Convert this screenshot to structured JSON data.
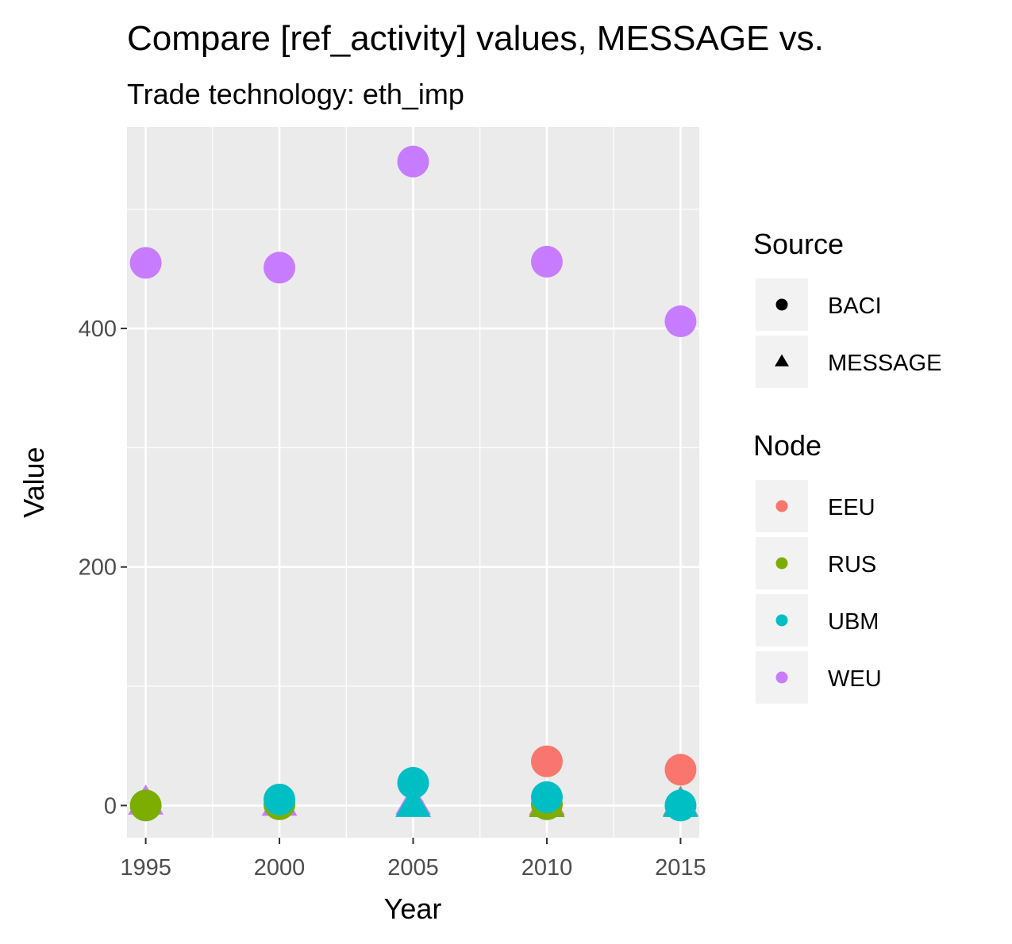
{
  "chart_data": {
    "type": "scatter",
    "title": "Compare [ref_activity] values, MESSAGE vs.",
    "subtitle": "Trade technology: eth_imp",
    "xlabel": "Year",
    "ylabel": "Value",
    "xlim": [
      1994.3,
      2015.7
    ],
    "ylim": [
      -27,
      569
    ],
    "x_ticks": [
      1995,
      2000,
      2005,
      2010,
      2015
    ],
    "y_ticks": [
      0,
      200,
      400
    ],
    "grid": true,
    "legend_position": "right",
    "legends": [
      {
        "title": "Source",
        "entries": [
          {
            "label": "BACI",
            "shape": "circle"
          },
          {
            "label": "MESSAGE",
            "shape": "triangle"
          }
        ]
      },
      {
        "title": "Node",
        "entries": [
          {
            "label": "EEU",
            "color": "#F8766D"
          },
          {
            "label": "RUS",
            "color": "#7CAE00"
          },
          {
            "label": "UBM",
            "color": "#00BFC4"
          },
          {
            "label": "WEU",
            "color": "#C77CFF"
          }
        ]
      }
    ],
    "series": [
      {
        "name": "WEU",
        "source": "BACI",
        "color": "#C77CFF",
        "shape": "circle",
        "x": [
          1995,
          2000,
          2005,
          2010,
          2015
        ],
        "y": [
          455,
          451,
          540,
          456,
          406
        ]
      },
      {
        "name": "WEU",
        "source": "MESSAGE",
        "color": "#C77CFF",
        "shape": "triangle",
        "x": [
          1995,
          2000,
          2005,
          2010,
          2015
        ],
        "y": [
          2,
          1,
          2,
          2,
          1
        ]
      },
      {
        "name": "EEU",
        "source": "MESSAGE",
        "color": "#F8766D",
        "shape": "triangle",
        "x": [
          2010,
          2015
        ],
        "y": [
          1,
          1
        ]
      },
      {
        "name": "UBM",
        "source": "MESSAGE",
        "color": "#00BFC4",
        "shape": "triangle",
        "x": [
          2005,
          2010,
          2015
        ],
        "y": [
          0,
          0,
          0
        ]
      },
      {
        "name": "RUS",
        "source": "MESSAGE",
        "color": "#7CAE00",
        "shape": "triangle",
        "x": [
          2010
        ],
        "y": [
          0
        ]
      },
      {
        "name": "EEU",
        "source": "BACI",
        "color": "#F8766D",
        "shape": "circle",
        "x": [
          2010,
          2015
        ],
        "y": [
          37,
          30
        ]
      },
      {
        "name": "RUS",
        "source": "BACI",
        "color": "#7CAE00",
        "shape": "circle",
        "x": [
          1995,
          2000,
          2010
        ],
        "y": [
          0,
          1,
          1
        ]
      },
      {
        "name": "UBM",
        "source": "BACI",
        "color": "#00BFC4",
        "shape": "circle",
        "x": [
          2000,
          2005,
          2010,
          2015
        ],
        "y": [
          5,
          19,
          7,
          0
        ]
      }
    ]
  }
}
